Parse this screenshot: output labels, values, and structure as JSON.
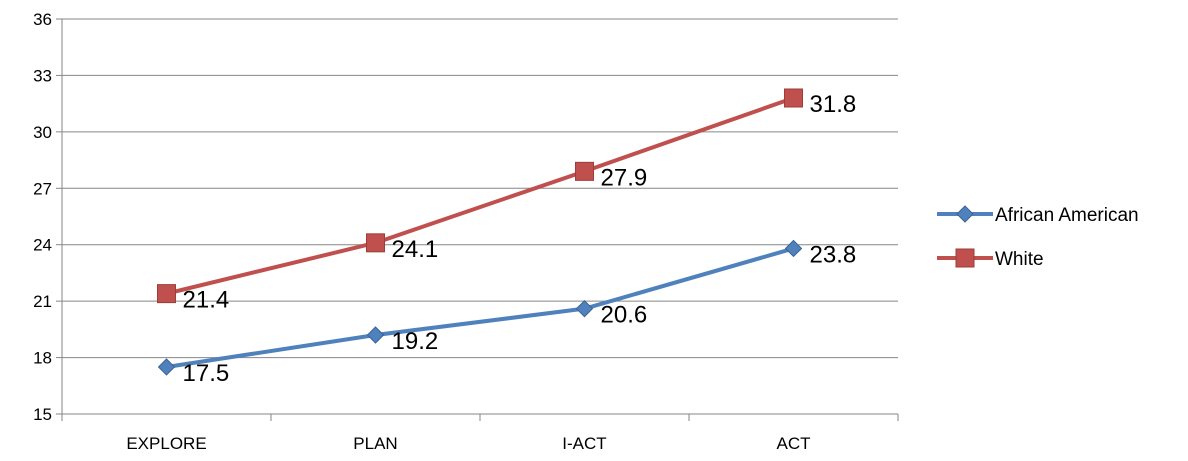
{
  "chart_data": {
    "type": "line",
    "title": "",
    "xlabel": "",
    "ylabel": "",
    "categories": [
      "EXPLORE",
      "PLAN",
      "I-ACT",
      "ACT"
    ],
    "ylim": [
      15,
      36
    ],
    "yticks": [
      15,
      18,
      21,
      24,
      27,
      30,
      33,
      36
    ],
    "grid": true,
    "legend_position": "right",
    "series": [
      {
        "name": "African American",
        "values": [
          17.5,
          19.2,
          20.6,
          23.8
        ],
        "labels": [
          "17.5",
          "19.2",
          "20.6",
          "23.8"
        ],
        "color": "#4f81bd",
        "marker": "diamond"
      },
      {
        "name": "White",
        "values": [
          21.4,
          24.1,
          27.9,
          31.8
        ],
        "labels": [
          "21.4",
          "24.1",
          "27.9",
          "31.8"
        ],
        "color": "#c0504d",
        "marker": "square"
      }
    ]
  }
}
